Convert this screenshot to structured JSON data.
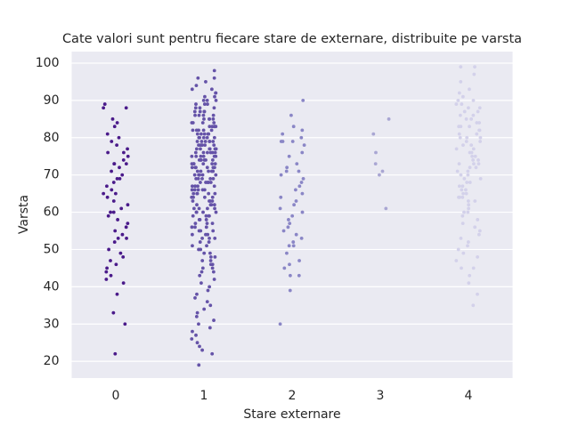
{
  "chart_data": {
    "type": "strip",
    "title": "Cate valori sunt pentru fiecare stare de externare, distribuite pe varsta",
    "x_label": "Stare externare",
    "y_label": "Varsta",
    "categories": [
      "0",
      "1",
      "2",
      "3",
      "4"
    ],
    "colors": [
      "#4a1a8a",
      "#6553a8",
      "#8a86c6",
      "#a9a6d3",
      "#d3d1ea"
    ],
    "values": [
      [
        88,
        88,
        89,
        84,
        85,
        83,
        80,
        81,
        79,
        78,
        77,
        76,
        76,
        75,
        74,
        73,
        73,
        73,
        72,
        71,
        70,
        69,
        69,
        68,
        67,
        66,
        65,
        65,
        64,
        63,
        62,
        61,
        60,
        60,
        59,
        58,
        57,
        56,
        55,
        54,
        53,
        53,
        52,
        50,
        49,
        48,
        47,
        46,
        45,
        44,
        43,
        42,
        41,
        38,
        33,
        30,
        22
      ],
      [
        98,
        96,
        96,
        95,
        94,
        93,
        93,
        92,
        92,
        91,
        91,
        90,
        90,
        90,
        89,
        89,
        89,
        88,
        88,
        88,
        87,
        87,
        87,
        87,
        86,
        86,
        86,
        86,
        85,
        85,
        85,
        85,
        84,
        84,
        84,
        84,
        83,
        83,
        83,
        83,
        83,
        82,
        82,
        82,
        82,
        82,
        81,
        81,
        81,
        81,
        81,
        80,
        80,
        80,
        80,
        80,
        79,
        79,
        79,
        79,
        79,
        79,
        78,
        78,
        78,
        78,
        78,
        78,
        77,
        77,
        77,
        77,
        77,
        77,
        76,
        76,
        76,
        76,
        76,
        76,
        75,
        75,
        75,
        75,
        75,
        75,
        74,
        74,
        74,
        74,
        74,
        74,
        73,
        73,
        73,
        73,
        73,
        73,
        72,
        72,
        72,
        72,
        72,
        72,
        71,
        71,
        71,
        71,
        71,
        70,
        70,
        70,
        70,
        70,
        69,
        69,
        69,
        69,
        69,
        68,
        68,
        68,
        68,
        68,
        67,
        67,
        67,
        67,
        67,
        66,
        66,
        66,
        66,
        66,
        65,
        65,
        65,
        65,
        65,
        64,
        64,
        64,
        64,
        63,
        63,
        63,
        63,
        62,
        62,
        62,
        62,
        61,
        61,
        61,
        61,
        60,
        60,
        60,
        60,
        59,
        59,
        59,
        59,
        58,
        58,
        58,
        57,
        57,
        57,
        56,
        56,
        56,
        55,
        55,
        55,
        54,
        54,
        54,
        53,
        53,
        53,
        52,
        52,
        51,
        51,
        50,
        50,
        49,
        49,
        48,
        48,
        47,
        47,
        46,
        46,
        45,
        45,
        44,
        44,
        43,
        42,
        41,
        40,
        39,
        38,
        37,
        36,
        35,
        34,
        33,
        32,
        31,
        30,
        29,
        28,
        27,
        26,
        25,
        24,
        23,
        22,
        19
      ],
      [
        90,
        86,
        83,
        82,
        81,
        80,
        79,
        79,
        79,
        78,
        76,
        75,
        73,
        72,
        71,
        71,
        70,
        69,
        68,
        67,
        66,
        65,
        64,
        63,
        62,
        61,
        60,
        59,
        58,
        57,
        56,
        55,
        54,
        53,
        52,
        51,
        51,
        49,
        47,
        46,
        45,
        43,
        43,
        39,
        30
      ],
      [
        85,
        81,
        76,
        73,
        71,
        70,
        61
      ],
      [
        99,
        99,
        97,
        95,
        93,
        92,
        91,
        90,
        90,
        89,
        89,
        88,
        88,
        87,
        87,
        86,
        86,
        85,
        85,
        84,
        84,
        83,
        83,
        83,
        82,
        82,
        81,
        81,
        80,
        80,
        80,
        79,
        79,
        78,
        78,
        77,
        77,
        76,
        76,
        75,
        75,
        74,
        74,
        73,
        73,
        73,
        72,
        72,
        71,
        71,
        70,
        70,
        69,
        69,
        68,
        68,
        67,
        67,
        66,
        66,
        65,
        65,
        64,
        64,
        64,
        63,
        63,
        62,
        61,
        60,
        60,
        59,
        58,
        57,
        56,
        55,
        54,
        53,
        52,
        51,
        50,
        49,
        48,
        47,
        45,
        45,
        43,
        41,
        38,
        35
      ]
    ],
    "ylim": [
      15.5,
      103.1
    ],
    "yticks": [
      20,
      30,
      40,
      50,
      60,
      70,
      80,
      90,
      100
    ],
    "grid": true
  }
}
